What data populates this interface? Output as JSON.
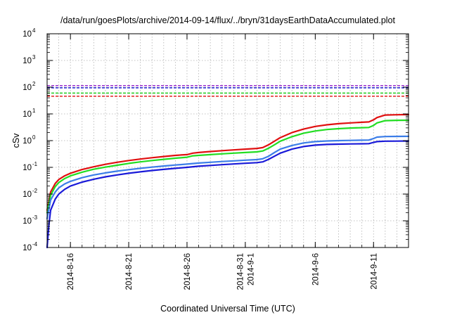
{
  "chart_data": {
    "type": "line",
    "title": "/data/run/goesPlots/archive/2014-09-14/flux/../bryn/31daysEarthDataAccumulated.plot",
    "xlabel": "Coordinated Universal Time (UTC)",
    "ylabel": "cSv",
    "x_unit": "days since 2014-08-14 00:00 UTC",
    "xlim": [
      0,
      31
    ],
    "ylim": [
      0.0001,
      10000
    ],
    "y_scale": "log",
    "grid": true,
    "x_ticks": [
      {
        "x": 2,
        "lines": [
          "2014-8-16"
        ]
      },
      {
        "x": 7,
        "lines": [
          "2014-8-21"
        ]
      },
      {
        "x": 12,
        "lines": [
          "2014-8-26"
        ]
      },
      {
        "x": 17,
        "lines": [
          "2014-8-31",
          "2014-9-1"
        ]
      },
      {
        "x": 23,
        "lines": [
          "2014-9-6"
        ]
      },
      {
        "x": 28,
        "lines": [
          "2014-9-11"
        ]
      }
    ],
    "y_ticks": [
      {
        "y": 0.0001,
        "base": "10",
        "exp": "-4"
      },
      {
        "y": 0.001,
        "base": "10",
        "exp": "-3"
      },
      {
        "y": 0.01,
        "base": "10",
        "exp": "-2"
      },
      {
        "y": 0.1,
        "base": "10",
        "exp": "-1"
      },
      {
        "y": 1,
        "base": "10",
        "exp": "0"
      },
      {
        "y": 10,
        "base": "10",
        "exp": "1"
      },
      {
        "y": 100,
        "base": "10",
        "exp": "2"
      },
      {
        "y": 1000,
        "base": "10",
        "exp": "3"
      },
      {
        "y": 10000,
        "base": "10",
        "exp": "4"
      }
    ],
    "reference_lines": [
      {
        "color": "#9b30d0",
        "y": 115
      },
      {
        "color": "#2020d0",
        "y": 95
      },
      {
        "color": "#22cc22",
        "y": 60
      },
      {
        "color": "#e02020",
        "y": 46
      }
    ],
    "series": [
      {
        "color": "#e01010",
        "points": [
          [
            0,
            0.0025
          ],
          [
            0.3,
            0.012
          ],
          [
            0.7,
            0.025
          ],
          [
            1,
            0.035
          ],
          [
            1.5,
            0.048
          ],
          [
            2,
            0.06
          ],
          [
            3,
            0.083
          ],
          [
            4,
            0.105
          ],
          [
            5,
            0.13
          ],
          [
            6,
            0.155
          ],
          [
            7,
            0.18
          ],
          [
            8,
            0.205
          ],
          [
            9,
            0.23
          ],
          [
            10,
            0.255
          ],
          [
            11,
            0.28
          ],
          [
            11.5,
            0.29
          ],
          [
            12,
            0.3
          ],
          [
            12.5,
            0.34
          ],
          [
            13,
            0.36
          ],
          [
            14,
            0.39
          ],
          [
            15,
            0.42
          ],
          [
            16,
            0.45
          ],
          [
            17,
            0.48
          ],
          [
            18,
            0.51
          ],
          [
            18.5,
            0.55
          ],
          [
            19,
            0.7
          ],
          [
            19.5,
            0.95
          ],
          [
            20,
            1.3
          ],
          [
            21,
            2.0
          ],
          [
            22,
            2.7
          ],
          [
            23,
            3.4
          ],
          [
            24,
            3.9
          ],
          [
            25,
            4.3
          ],
          [
            26,
            4.6
          ],
          [
            27,
            4.85
          ],
          [
            27.6,
            5.0
          ],
          [
            28,
            6.0
          ],
          [
            28.3,
            7.3
          ],
          [
            29,
            9.1
          ],
          [
            30,
            9.3
          ],
          [
            31,
            9.4
          ]
        ]
      },
      {
        "color": "#22dd22",
        "points": [
          [
            0,
            0.002
          ],
          [
            0.3,
            0.009
          ],
          [
            0.7,
            0.019
          ],
          [
            1,
            0.027
          ],
          [
            1.5,
            0.038
          ],
          [
            2,
            0.048
          ],
          [
            3,
            0.066
          ],
          [
            4,
            0.085
          ],
          [
            5,
            0.102
          ],
          [
            6,
            0.12
          ],
          [
            7,
            0.14
          ],
          [
            8,
            0.16
          ],
          [
            9,
            0.18
          ],
          [
            10,
            0.2
          ],
          [
            11,
            0.22
          ],
          [
            12,
            0.24
          ],
          [
            12.5,
            0.27
          ],
          [
            13,
            0.28
          ],
          [
            14,
            0.3
          ],
          [
            15,
            0.32
          ],
          [
            16,
            0.34
          ],
          [
            17,
            0.36
          ],
          [
            18,
            0.38
          ],
          [
            18.5,
            0.41
          ],
          [
            19,
            0.52
          ],
          [
            19.5,
            0.7
          ],
          [
            20,
            0.95
          ],
          [
            21,
            1.4
          ],
          [
            22,
            1.9
          ],
          [
            23,
            2.3
          ],
          [
            24,
            2.6
          ],
          [
            25,
            2.8
          ],
          [
            26,
            2.95
          ],
          [
            27,
            3.05
          ],
          [
            27.6,
            3.1
          ],
          [
            28,
            3.7
          ],
          [
            28.3,
            4.6
          ],
          [
            29,
            5.6
          ],
          [
            30,
            5.75
          ],
          [
            31,
            5.8
          ]
        ]
      },
      {
        "color": "#3b7de8",
        "points": [
          [
            0,
            0.0012
          ],
          [
            0.3,
            0.006
          ],
          [
            0.7,
            0.012
          ],
          [
            1,
            0.017
          ],
          [
            1.5,
            0.024
          ],
          [
            2,
            0.03
          ],
          [
            3,
            0.041
          ],
          [
            4,
            0.052
          ],
          [
            5,
            0.062
          ],
          [
            6,
            0.072
          ],
          [
            7,
            0.082
          ],
          [
            8,
            0.092
          ],
          [
            9,
            0.102
          ],
          [
            10,
            0.112
          ],
          [
            11,
            0.122
          ],
          [
            12,
            0.132
          ],
          [
            13,
            0.145
          ],
          [
            14,
            0.155
          ],
          [
            15,
            0.165
          ],
          [
            16,
            0.175
          ],
          [
            17,
            0.185
          ],
          [
            18,
            0.195
          ],
          [
            18.5,
            0.21
          ],
          [
            19,
            0.26
          ],
          [
            19.5,
            0.36
          ],
          [
            20,
            0.48
          ],
          [
            21,
            0.66
          ],
          [
            22,
            0.82
          ],
          [
            23,
            0.92
          ],
          [
            24,
            0.97
          ],
          [
            25,
            1.0
          ],
          [
            26,
            1.02
          ],
          [
            27,
            1.04
          ],
          [
            27.6,
            1.05
          ],
          [
            28,
            1.2
          ],
          [
            28.3,
            1.35
          ],
          [
            29,
            1.42
          ],
          [
            30,
            1.44
          ],
          [
            31,
            1.45
          ]
        ]
      },
      {
        "color": "#1a1ad8",
        "points": [
          [
            0,
            0.0001
          ],
          [
            0.15,
            0.0007
          ],
          [
            0.3,
            0.0025
          ],
          [
            0.7,
            0.0065
          ],
          [
            1,
            0.01
          ],
          [
            1.5,
            0.015
          ],
          [
            2,
            0.02
          ],
          [
            3,
            0.028
          ],
          [
            4,
            0.036
          ],
          [
            5,
            0.044
          ],
          [
            6,
            0.052
          ],
          [
            7,
            0.06
          ],
          [
            8,
            0.068
          ],
          [
            9,
            0.076
          ],
          [
            10,
            0.084
          ],
          [
            11,
            0.092
          ],
          [
            12,
            0.1
          ],
          [
            13,
            0.11
          ],
          [
            14,
            0.118
          ],
          [
            15,
            0.126
          ],
          [
            16,
            0.134
          ],
          [
            17,
            0.142
          ],
          [
            18,
            0.15
          ],
          [
            18.5,
            0.16
          ],
          [
            19,
            0.2
          ],
          [
            19.5,
            0.26
          ],
          [
            20,
            0.34
          ],
          [
            21,
            0.48
          ],
          [
            22,
            0.6
          ],
          [
            23,
            0.68
          ],
          [
            24,
            0.72
          ],
          [
            25,
            0.74
          ],
          [
            26,
            0.75
          ],
          [
            27,
            0.76
          ],
          [
            27.6,
            0.77
          ],
          [
            28,
            0.86
          ],
          [
            28.3,
            0.92
          ],
          [
            29,
            0.95
          ],
          [
            30,
            0.96
          ],
          [
            31,
            0.97
          ]
        ]
      }
    ]
  }
}
